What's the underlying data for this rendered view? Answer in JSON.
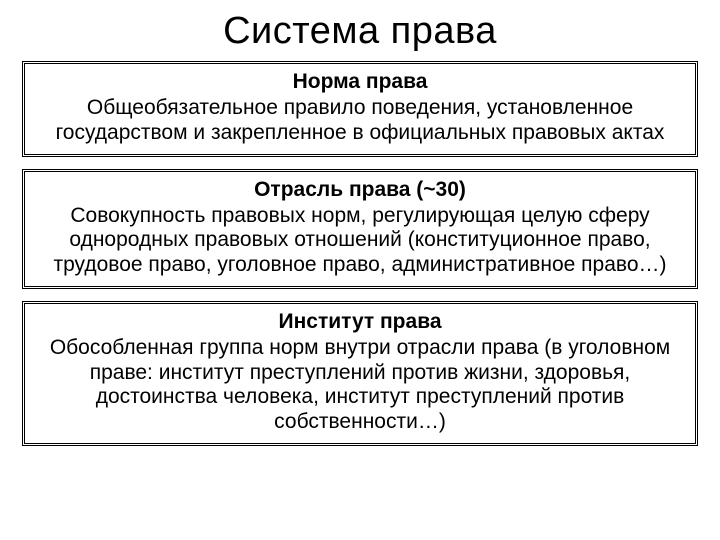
{
  "slide": {
    "title": "Система права",
    "background_color": "#ffffff",
    "text_color": "#000000",
    "title_fontsize": 38,
    "title_fontweight": 400,
    "box_border_style": "double",
    "box_border_width": 3,
    "box_border_color": "#000000",
    "box_title_fontsize": 21,
    "box_title_fontweight": 700,
    "box_body_fontsize": 21,
    "box_body_fontweight": 400,
    "boxes": [
      {
        "title": "Норма права",
        "body": "Общеобязательное правило поведения, установленное государством и закрепленное в официальных правовых актах"
      },
      {
        "title": "Отрасль права (~30)",
        "body": "Совокупность правовых норм, регулирующая целую сферу однородных правовых отношений (конституционное право, трудовое право, уголовное право, административное право…)"
      },
      {
        "title": "Институт права",
        "body": "Обособленная группа норм внутри отрасли права (в уголовном праве: институт преступлений против жизни, здоровья, достоинства человека, институт преступлений против собственности…)"
      }
    ]
  }
}
